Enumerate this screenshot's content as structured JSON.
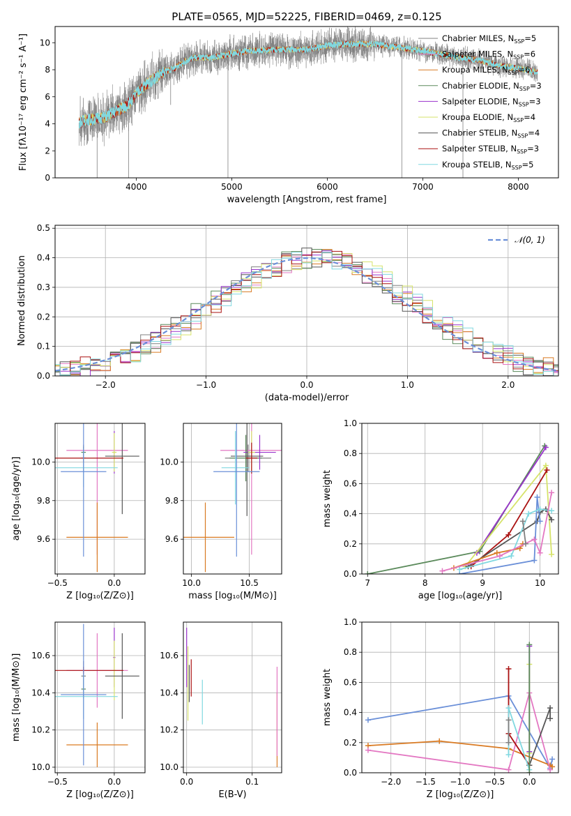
{
  "figure_title": "PLATE=0565, MJD=52225, FIBERID=0469, z=0.125",
  "colors": {
    "CMILES": "#808080",
    "SMILES": "#e377c2",
    "KMILES": "#d97a22",
    "CELODIE": "#5b8a5b",
    "SELODIE": "#9933cc",
    "KELODIE": "#d6e36a",
    "CSTELIB": "#555555",
    "SSTELIB": "#aa1111",
    "KSTELIB": "#80d8e0",
    "normal": "#6a8fd8",
    "spec_model_main": "#6fd3d8"
  },
  "legend_models": [
    {
      "key": "CMILES",
      "label": "Chabrier MILES, N",
      "sub": "SSP",
      "tail": "=5"
    },
    {
      "key": "SMILES",
      "label": "Salpeter MILES, N",
      "sub": "SSP",
      "tail": "=6"
    },
    {
      "key": "KMILES",
      "label": "Kroupa MILES, N",
      "sub": "SSP",
      "tail": "=6"
    },
    {
      "key": "CELODIE",
      "label": "Chabrier ELODIE, N",
      "sub": "SSP",
      "tail": "=3"
    },
    {
      "key": "SELODIE",
      "label": "Salpeter ELODIE, N",
      "sub": "SSP",
      "tail": "=3"
    },
    {
      "key": "KELODIE",
      "label": "Kroupa ELODIE, N",
      "sub": "SSP",
      "tail": "=4"
    },
    {
      "key": "CSTELIB",
      "label": "Chabrier STELIB, N",
      "sub": "SSP",
      "tail": "=4"
    },
    {
      "key": "SSTELIB",
      "label": "Salpeter STELIB, N",
      "sub": "SSP",
      "tail": "=3"
    },
    {
      "key": "KSTELIB",
      "label": "Kroupa STELIB, N",
      "sub": "SSP",
      "tail": "=5"
    }
  ],
  "chart_data": [
    {
      "id": "spectrum",
      "type": "line",
      "xlabel": "wavelength [Angstrom, rest frame]",
      "ylabel": "Flux [fλ10⁻¹⁷ erg cm⁻² s⁻¹ A⁻¹]",
      "xlim": [
        3150,
        8420
      ],
      "ylim": [
        0,
        11.2
      ],
      "xticks": [
        4000,
        5000,
        6000,
        7000,
        8000
      ],
      "yticks": [
        0,
        2,
        4,
        6,
        8,
        10
      ],
      "grid": false,
      "legend": "right",
      "data_envelope": {
        "x": [
          3400,
          3500,
          3600,
          3700,
          3800,
          3900,
          4000,
          4100,
          4200,
          4300,
          4400,
          4500,
          4600,
          4800,
          5000,
          5200,
          5500,
          5800,
          6000,
          6200,
          6500,
          6800,
          7000,
          7300,
          7600,
          7800,
          8000,
          8200
        ],
        "y": [
          4.1,
          4.3,
          4.4,
          4.6,
          5.0,
          5.3,
          6.2,
          6.9,
          7.4,
          7.9,
          8.1,
          8.6,
          8.9,
          8.9,
          9.2,
          9.4,
          9.5,
          9.5,
          9.8,
          9.9,
          9.9,
          9.6,
          9.4,
          9.0,
          8.7,
          8.3,
          8.1,
          7.8
        ]
      },
      "absorption_spikes": [
        {
          "x": 3590,
          "y": 0
        },
        {
          "x": 3920,
          "y": 0
        },
        {
          "x": 4360,
          "y": 5.4
        },
        {
          "x": 4960,
          "y": 0
        },
        {
          "x": 6780,
          "y": 0
        },
        {
          "x": 7420,
          "y": 0
        }
      ]
    },
    {
      "id": "residual_hist",
      "type": "line",
      "xlabel": "(data-model)/error",
      "ylabel": "Normed distribution",
      "xlim": [
        -2.5,
        2.5
      ],
      "ylim": [
        0,
        0.51
      ],
      "xticks": [
        -2,
        -1,
        0,
        1,
        2
      ],
      "yticks": [
        0.0,
        0.1,
        0.2,
        0.3,
        0.4,
        0.5
      ],
      "grid": true,
      "legend_label": "𝒩(0, 1)",
      "legend": "top-right",
      "bin_width": 0.1
    },
    {
      "id": "age_vs_Z",
      "type": "scatter",
      "xlabel": "Z [log₁₀(Z/Z⊙)]",
      "ylabel": "age  [log₁₀(age/yr)]",
      "xlim": [
        -0.52,
        0.27
      ],
      "ylim": [
        9.42,
        10.2
      ],
      "xticks": [
        -0.5,
        0.0
      ],
      "yticks": [
        9.6,
        9.8,
        10.0
      ],
      "grid": true,
      "points": [
        {
          "key": "CMILES",
          "x": -0.27,
          "y": 10.02,
          "xerr": 0.02,
          "yerr": 0.07
        },
        {
          "key": "SMILES",
          "x": -0.15,
          "y": 10.06,
          "xerr": 0.27,
          "yerr": 0.54
        },
        {
          "key": "KMILES",
          "x": -0.15,
          "y": 9.61,
          "xerr": 0.27,
          "yerr": 0.18
        },
        {
          "key": "CELODIE",
          "x": -0.27,
          "y": 10.05,
          "xerr": 0.02,
          "yerr": 0.03
        },
        {
          "key": "SELODIE",
          "x": 0.0,
          "y": 10.05,
          "xerr": 0.01,
          "yerr": 0.11
        },
        {
          "key": "KELODIE",
          "x": 0.0,
          "y": 10.05,
          "xerr": 0.02,
          "yerr": 0.1
        },
        {
          "key": "CSTELIB",
          "x": 0.07,
          "y": 10.03,
          "xerr": 0.15,
          "yerr": 0.3
        },
        {
          "key": "SSTELIB",
          "x": -0.27,
          "y": 10.02,
          "xerr": 0.35,
          "yerr": 0.02
        },
        {
          "key": "KSTELIB",
          "x": -0.27,
          "y": 9.97,
          "xerr": 0.3,
          "yerr": 0.1
        },
        {
          "key": "normal",
          "x": -0.27,
          "y": 9.95,
          "xerr": 0.2,
          "yerr": 0.44
        }
      ]
    },
    {
      "id": "age_vs_mass",
      "type": "scatter",
      "xlabel": "mass [log₁₀(M/M⊙)]",
      "ylabel": "",
      "xlim": [
        9.93,
        10.78
      ],
      "ylim": [
        9.42,
        10.2
      ],
      "xticks": [
        10.0,
        10.5
      ],
      "yticks": [
        9.6,
        9.8,
        10.0
      ],
      "grid": true,
      "points": [
        {
          "key": "CMILES",
          "x": 10.49,
          "y": 10.02,
          "xerr": 0.2,
          "yerr": 0.07
        },
        {
          "key": "SMILES",
          "x": 10.52,
          "y": 10.06,
          "xerr": 0.27,
          "yerr": 0.54
        },
        {
          "key": "KMILES",
          "x": 10.12,
          "y": 9.61,
          "xerr": 0.25,
          "yerr": 0.18
        },
        {
          "key": "CELODIE",
          "x": 10.47,
          "y": 10.02,
          "xerr": 0.14,
          "yerr": 0.12
        },
        {
          "key": "SELODIE",
          "x": 10.59,
          "y": 10.05,
          "xerr": 0.14,
          "yerr": 0.09
        },
        {
          "key": "KELODIE",
          "x": 10.52,
          "y": 10.05,
          "xerr": 0.03,
          "yerr": 0.11
        },
        {
          "key": "CSTELIB",
          "x": 10.48,
          "y": 10.03,
          "xerr": 0.14,
          "yerr": 0.31
        },
        {
          "key": "SSTELIB",
          "x": 10.52,
          "y": 10.02,
          "xerr": 0.05,
          "yerr": 0.08
        },
        {
          "key": "KSTELIB",
          "x": 10.38,
          "y": 9.97,
          "xerr": 0.12,
          "yerr": 0.19
        },
        {
          "key": "normal",
          "x": 10.39,
          "y": 9.95,
          "xerr": 0.2,
          "yerr": 0.44
        }
      ]
    },
    {
      "id": "mw_vs_age",
      "type": "line",
      "xlabel": "age  [log₁₀(age/yr)]",
      "ylabel": "mass weight",
      "xlim": [
        6.9,
        10.32
      ],
      "ylim": [
        0,
        1.0
      ],
      "xticks": [
        7,
        8,
        9,
        10
      ],
      "yticks": [
        0.0,
        0.2,
        0.4,
        0.6,
        0.8,
        1.0
      ],
      "grid": true,
      "series": [
        {
          "key": "CELODIE",
          "x": [
            7.0,
            8.95,
            10.08
          ],
          "y": [
            0.0,
            0.15,
            0.85
          ]
        },
        {
          "key": "SELODIE",
          "x": [
            8.9,
            10.1
          ],
          "y": [
            0.14,
            0.84
          ]
        },
        {
          "key": "KELODIE",
          "x": [
            8.7,
            10.1,
            10.2
          ],
          "y": [
            0.05,
            0.72,
            0.13
          ]
        },
        {
          "key": "SSTELIB",
          "x": [
            8.8,
            9.45,
            10.12
          ],
          "y": [
            0.05,
            0.26,
            0.69
          ]
        },
        {
          "key": "CSTELIB",
          "x": [
            8.75,
            9.95,
            10.0,
            10.1,
            10.2
          ],
          "y": [
            0.05,
            0.35,
            0.41,
            0.43,
            0.36
          ]
        },
        {
          "key": "normal",
          "x": [
            8.6,
            9.9,
            9.95,
            10.0
          ],
          "y": [
            0.0,
            0.09,
            0.51,
            0.35
          ]
        },
        {
          "key": "KSTELIB",
          "x": [
            8.6,
            9.5,
            9.8,
            10.0,
            10.2
          ],
          "y": [
            0.03,
            0.12,
            0.4,
            0.43,
            0.42
          ]
        },
        {
          "key": "KMILES",
          "x": [
            8.5,
            9.25,
            9.65,
            9.7
          ],
          "y": [
            0.04,
            0.14,
            0.17,
            0.2
          ]
        },
        {
          "key": "SMILES",
          "x": [
            8.3,
            9.3,
            9.9,
            10.0,
            10.2
          ],
          "y": [
            0.02,
            0.12,
            0.23,
            0.14,
            0.54
          ]
        },
        {
          "key": "CMILES",
          "x": [
            9.7,
            9.75
          ],
          "y": [
            0.35,
            0.2
          ]
        }
      ]
    },
    {
      "id": "mass_vs_Z",
      "type": "scatter",
      "xlabel": "Z [log₁₀(Z/Z⊙)]",
      "ylabel": "mass [log₁₀(M/M⊙)]",
      "xlim": [
        -0.52,
        0.27
      ],
      "ylim": [
        9.97,
        10.78
      ],
      "xticks": [
        -0.5,
        0.0
      ],
      "yticks": [
        10.0,
        10.2,
        10.4,
        10.6
      ],
      "grid": true,
      "points": [
        {
          "key": "CMILES",
          "x": -0.27,
          "y": 10.49,
          "xerr": 0.02,
          "yerr": 0.08
        },
        {
          "key": "SMILES",
          "x": -0.15,
          "y": 10.52,
          "xerr": 0.27,
          "yerr": 0.2
        },
        {
          "key": "KMILES",
          "x": -0.15,
          "y": 10.12,
          "xerr": 0.27,
          "yerr": 0.12
        },
        {
          "key": "CELODIE",
          "x": -0.27,
          "y": 10.42,
          "xerr": 0.02,
          "yerr": 0.05
        },
        {
          "key": "SELODIE",
          "x": 0.0,
          "y": 10.59,
          "xerr": 0.01,
          "yerr": 0.16
        },
        {
          "key": "KELODIE",
          "x": 0.0,
          "y": 10.52,
          "xerr": 0.02,
          "yerr": 0.16
        },
        {
          "key": "CSTELIB",
          "x": 0.07,
          "y": 10.49,
          "xerr": 0.15,
          "yerr": 0.23
        },
        {
          "key": "SSTELIB",
          "x": -0.27,
          "y": 10.52,
          "xerr": 0.35,
          "yerr": 0.02
        },
        {
          "key": "KSTELIB",
          "x": -0.27,
          "y": 10.38,
          "xerr": 0.3,
          "yerr": 0.12
        },
        {
          "key": "normal",
          "x": -0.27,
          "y": 10.39,
          "xerr": 0.2,
          "yerr": 0.38
        }
      ]
    },
    {
      "id": "mass_vs_EBV",
      "type": "scatter",
      "xlabel": "E(B-V)",
      "ylabel": "",
      "xlim": [
        -0.005,
        0.145
      ],
      "ylim": [
        9.97,
        10.78
      ],
      "xticks": [
        0.0,
        0.1
      ],
      "yticks": [
        10.0,
        10.2,
        10.4,
        10.6
      ],
      "grid": true,
      "points": [
        {
          "key": "SELODIE",
          "x": 0.0,
          "y": 10.59,
          "xerr": 0,
          "yerr": 0.16
        },
        {
          "key": "KELODIE",
          "x": 0.002,
          "y": 10.45,
          "xerr": 0,
          "yerr": 0.2
        },
        {
          "key": "CSTELIB",
          "x": 0.004,
          "y": 10.45,
          "xerr": 0,
          "yerr": 0.1
        },
        {
          "key": "SSTELIB",
          "x": 0.007,
          "y": 10.48,
          "xerr": 0,
          "yerr": 0.1
        },
        {
          "key": "KSTELIB",
          "x": 0.024,
          "y": 10.35,
          "xerr": 0,
          "yerr": 0.12
        },
        {
          "key": "KMILES",
          "x": 0.138,
          "y": 10.2,
          "xerr": 0,
          "yerr": 0.2
        },
        {
          "key": "SMILES",
          "x": 0.138,
          "y": 10.3,
          "xerr": 0,
          "yerr": 0.24
        }
      ]
    },
    {
      "id": "mw_vs_Z",
      "type": "line",
      "xlabel": "Z [log₁₀(Z/Z⊙)]",
      "ylabel": "mass weight",
      "xlim": [
        -2.42,
        0.42
      ],
      "ylim": [
        0,
        1.0
      ],
      "xticks": [
        -2.0,
        -1.5,
        -1.0,
        -0.5,
        0.0
      ],
      "yticks": [
        0.0,
        0.2,
        0.4,
        0.6,
        0.8,
        1.0
      ],
      "grid": true,
      "series": [
        {
          "key": "normal",
          "x": [
            -2.33,
            -0.3,
            0.3,
            0.33
          ],
          "y": [
            0.35,
            0.51,
            0.03,
            0.09
          ]
        },
        {
          "key": "KMILES",
          "x": [
            -2.33,
            -1.3,
            -0.3,
            0.3,
            0.33
          ],
          "y": [
            0.18,
            0.21,
            0.16,
            0.05,
            0.04
          ]
        },
        {
          "key": "SMILES",
          "x": [
            -2.33,
            -0.3,
            0.0,
            0.3
          ],
          "y": [
            0.15,
            0.02,
            0.53,
            0.02
          ]
        },
        {
          "key": "SSTELIB",
          "x": [
            -0.3,
            -0.3,
            0.0
          ],
          "y": [
            0.69,
            0.26,
            0.05
          ]
        },
        {
          "key": "CSTELIB",
          "x": [
            0.0,
            0.3,
            0.3
          ],
          "y": [
            0.05,
            0.43,
            0.36
          ]
        },
        {
          "key": "SELODIE",
          "x": [
            0.0,
            0.0
          ],
          "y": [
            0.84,
            0.14
          ]
        },
        {
          "key": "KELODIE",
          "x": [
            0.0,
            0.0
          ],
          "y": [
            0.72,
            0.13
          ]
        },
        {
          "key": "KSTELIB",
          "x": [
            -0.3,
            -0.3,
            0.0
          ],
          "y": [
            0.12,
            0.43,
            0.02
          ]
        },
        {
          "key": "CELODIE",
          "x": [
            0.0,
            0.0
          ],
          "y": [
            0.85,
            0.0
          ]
        },
        {
          "key": "CMILES",
          "x": [
            -0.3,
            -0.3
          ],
          "y": [
            0.35,
            0.2
          ]
        }
      ]
    }
  ]
}
